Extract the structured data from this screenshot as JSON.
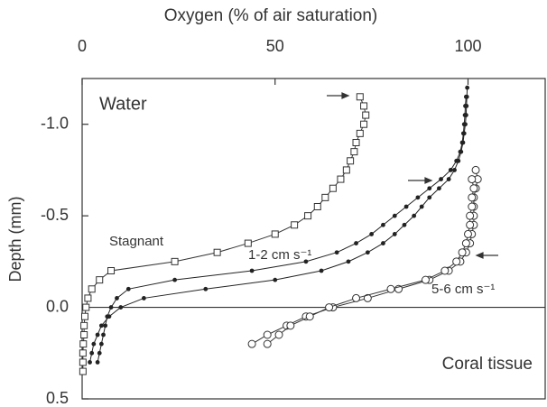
{
  "chart_data": {
    "type": "line",
    "xlabel": "Oxygen (% of air saturation)",
    "ylabel": "Depth (mm)",
    "xlim": [
      0,
      120
    ],
    "xticks": [
      0,
      50,
      100
    ],
    "ylim": [
      -1.25,
      0.5
    ],
    "y_inverted": true,
    "yticks": [
      {
        "value": -1,
        "label": "-1.0"
      },
      -0.5,
      {
        "value": 0,
        "label": "0.0"
      },
      0.5
    ],
    "series": [
      {
        "marker": "square",
        "color": "#333333",
        "x": [
          72,
          73,
          73.5,
          73,
          72,
          71,
          70.5,
          69.5,
          68.5,
          67,
          65,
          63,
          61,
          58.5,
          55,
          50,
          43,
          35,
          24,
          7.5,
          4.5,
          2.5,
          1.5,
          1,
          0.7,
          0.5,
          0.5,
          0.3,
          0.2,
          0.2,
          0.2
        ],
        "y": [
          -1.15,
          -1.1,
          -1.05,
          -1,
          -0.95,
          -0.9,
          -0.85,
          -0.8,
          -0.75,
          -0.7,
          -0.65,
          -0.6,
          -0.55,
          -0.5,
          -0.45,
          -0.4,
          -0.35,
          -0.3,
          -0.25,
          -0.2,
          -0.15,
          -0.1,
          -0.05,
          0,
          0.05,
          0.1,
          0.15,
          0.2,
          0.25,
          0.3,
          0.35
        ]
      },
      {
        "marker": "dot",
        "color": "#222222",
        "x": [
          99.8,
          99.7,
          99.6,
          99.5,
          99.3,
          99,
          98.7,
          98.2,
          97.5,
          96.5,
          95,
          92.5,
          90,
          88,
          86,
          83.5,
          81,
          78,
          74,
          69,
          62,
          50,
          32,
          16,
          10,
          7,
          5,
          4,
          3,
          2.5,
          2
        ],
        "y": [
          -1.2,
          -1.15,
          -1.1,
          -1.05,
          -1,
          -0.95,
          -0.9,
          -0.85,
          -0.8,
          -0.75,
          -0.7,
          -0.65,
          -0.6,
          -0.55,
          -0.5,
          -0.45,
          -0.4,
          -0.35,
          -0.3,
          -0.25,
          -0.2,
          -0.15,
          -0.1,
          -0.05,
          0,
          0.05,
          0.1,
          0.15,
          0.2,
          0.25,
          0.3
        ]
      },
      {
        "marker": "dot",
        "color": "#222222",
        "x": [
          99.5,
          99.3,
          99.2,
          99,
          98.8,
          98.5,
          98,
          97,
          95.5,
          93,
          90,
          87,
          84,
          81,
          78,
          75,
          71,
          66,
          58,
          44,
          24,
          12,
          9,
          7.5,
          6.5,
          6,
          5.5,
          5,
          4.5,
          4
        ],
        "y": [
          -1.15,
          -1.1,
          -1.05,
          -1,
          -0.95,
          -0.9,
          -0.85,
          -0.8,
          -0.75,
          -0.7,
          -0.65,
          -0.6,
          -0.55,
          -0.5,
          -0.45,
          -0.4,
          -0.35,
          -0.3,
          -0.25,
          -0.2,
          -0.15,
          -0.1,
          -0.05,
          0,
          0.05,
          0.1,
          0.15,
          0.2,
          0.25,
          0.3
        ]
      },
      {
        "marker": "circle",
        "color": "#333333",
        "x": [
          102,
          102.5,
          102,
          101.5,
          101.5,
          101.5,
          101.5,
          101,
          100.5,
          99.5,
          98,
          95,
          90,
          82,
          74,
          65,
          58,
          53,
          48,
          44
        ],
        "y": [
          -0.75,
          -0.7,
          -0.65,
          -0.6,
          -0.55,
          -0.5,
          -0.45,
          -0.4,
          -0.35,
          -0.3,
          -0.25,
          -0.2,
          -0.15,
          -0.1,
          -0.05,
          0,
          0.05,
          0.1,
          0.15,
          0.2
        ]
      },
      {
        "marker": "circle",
        "color": "#333333",
        "x": [
          101,
          101.5,
          101,
          101,
          100.5,
          100.5,
          100,
          99.5,
          98.5,
          97,
          94,
          89,
          80,
          71,
          64,
          59,
          54,
          51,
          48
        ],
        "y": [
          -0.7,
          -0.65,
          -0.6,
          -0.55,
          -0.5,
          -0.45,
          -0.4,
          -0.35,
          -0.3,
          -0.25,
          -0.2,
          -0.15,
          -0.1,
          -0.05,
          0,
          0.05,
          0.1,
          0.15,
          0.2
        ]
      }
    ],
    "annotations": [
      "Water",
      "Stagnant",
      "1-2 cm s⁻¹",
      "5-6 cm s⁻¹",
      "Coral tissue"
    ]
  }
}
